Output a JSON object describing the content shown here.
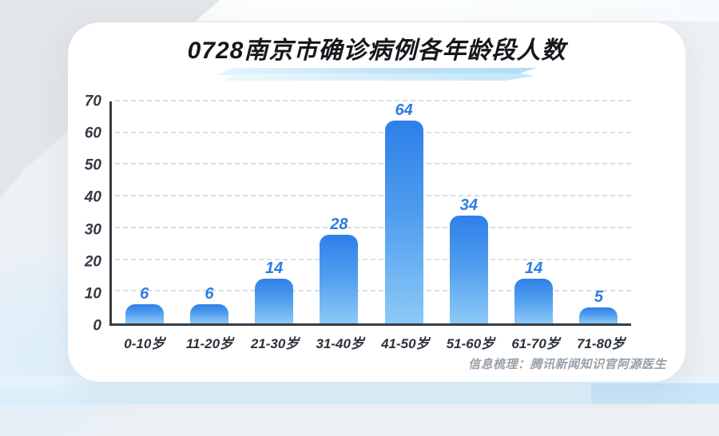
{
  "page": {
    "source_note": "信息梳理：腾讯新闻知识官阿源医生"
  },
  "chart_data": {
    "type": "bar",
    "title": "0728南京市确诊病例各年龄段人数",
    "categories": [
      "0-10岁",
      "11-20岁",
      "21-30岁",
      "31-40岁",
      "41-50岁",
      "51-60岁",
      "61-70岁",
      "71-80岁"
    ],
    "values": [
      6,
      6,
      14,
      28,
      64,
      34,
      14,
      5
    ],
    "xlabel": "",
    "ylabel": "",
    "ylim": [
      0,
      70
    ],
    "yticks": [
      0,
      10,
      20,
      30,
      40,
      50,
      60,
      70
    ],
    "grid": "horizontal-dashed",
    "legend": "none",
    "value_labels": "above-bars",
    "colors": {
      "bar_gradient_top": "#2e80e8",
      "bar_gradient_bottom": "#8bc9f7",
      "value_label": "#2b7de2",
      "axis_text": "#343b44",
      "axis_line": "#363c42",
      "gridline": "#d9dde1",
      "title_text": "#14181d",
      "source_text": "#9aa1a9",
      "swoosh_accent": "#bfe3f8",
      "card_background": "#ffffff"
    }
  }
}
